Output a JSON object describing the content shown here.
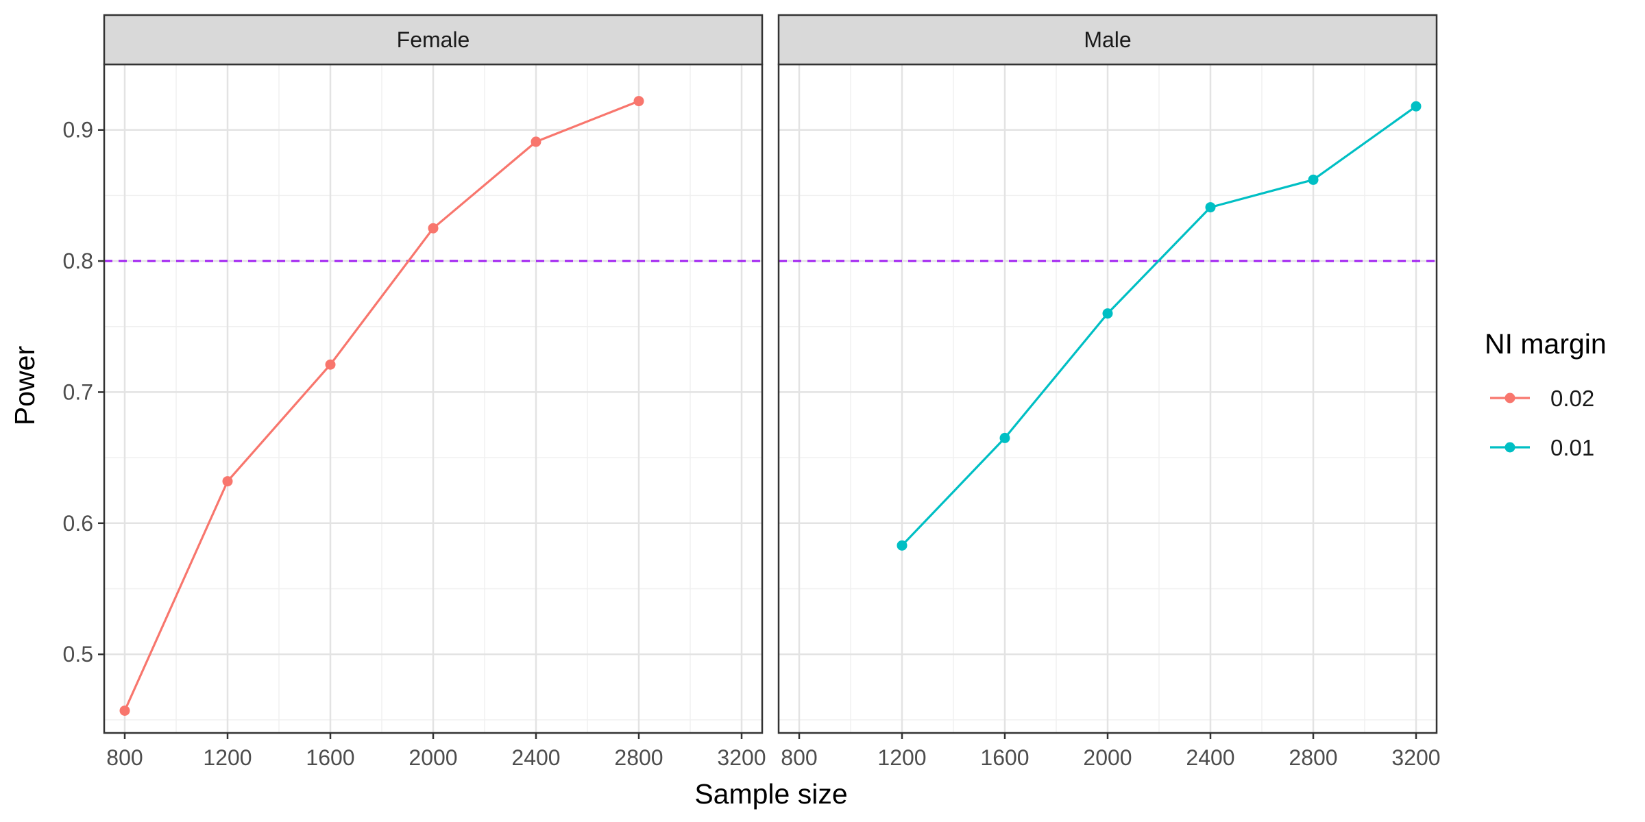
{
  "chart_data": {
    "type": "line",
    "xlabel": "Sample size",
    "ylabel": "Power",
    "xlim": [
      720,
      3280
    ],
    "ylim": [
      0.44,
      0.95
    ],
    "x_ticks": [
      800,
      1200,
      1600,
      2000,
      2400,
      2800,
      3200
    ],
    "x_tick_labels": [
      "800",
      "1200",
      "1600",
      "2000",
      "2400",
      "2800",
      "3200"
    ],
    "y_ticks": [
      0.5,
      0.6,
      0.7,
      0.8,
      0.9
    ],
    "y_tick_labels": [
      "0.5",
      "0.6",
      "0.7",
      "0.8",
      "0.9"
    ],
    "reference_line": {
      "y": 0.8,
      "color": "#A020F0",
      "style": "dashed"
    },
    "grid": true,
    "legend": {
      "title": "NI margin",
      "position": "right",
      "entries": [
        {
          "label": "0.02",
          "color": "#F8766D"
        },
        {
          "label": "0.01",
          "color": "#00BFC4"
        }
      ]
    },
    "panels": [
      {
        "label": "Female",
        "series": [
          {
            "name": "0.02",
            "color": "#F8766D",
            "x": [
              800,
              1200,
              1600,
              2000,
              2400,
              2800
            ],
            "values": [
              0.457,
              0.632,
              0.721,
              0.825,
              0.891,
              0.922
            ]
          }
        ]
      },
      {
        "label": "Male",
        "series": [
          {
            "name": "0.01",
            "color": "#00BFC4",
            "x": [
              1200,
              1600,
              2000,
              2400,
              2800,
              3200
            ],
            "values": [
              0.583,
              0.665,
              0.76,
              0.841,
              0.862,
              0.918
            ]
          }
        ]
      }
    ]
  }
}
